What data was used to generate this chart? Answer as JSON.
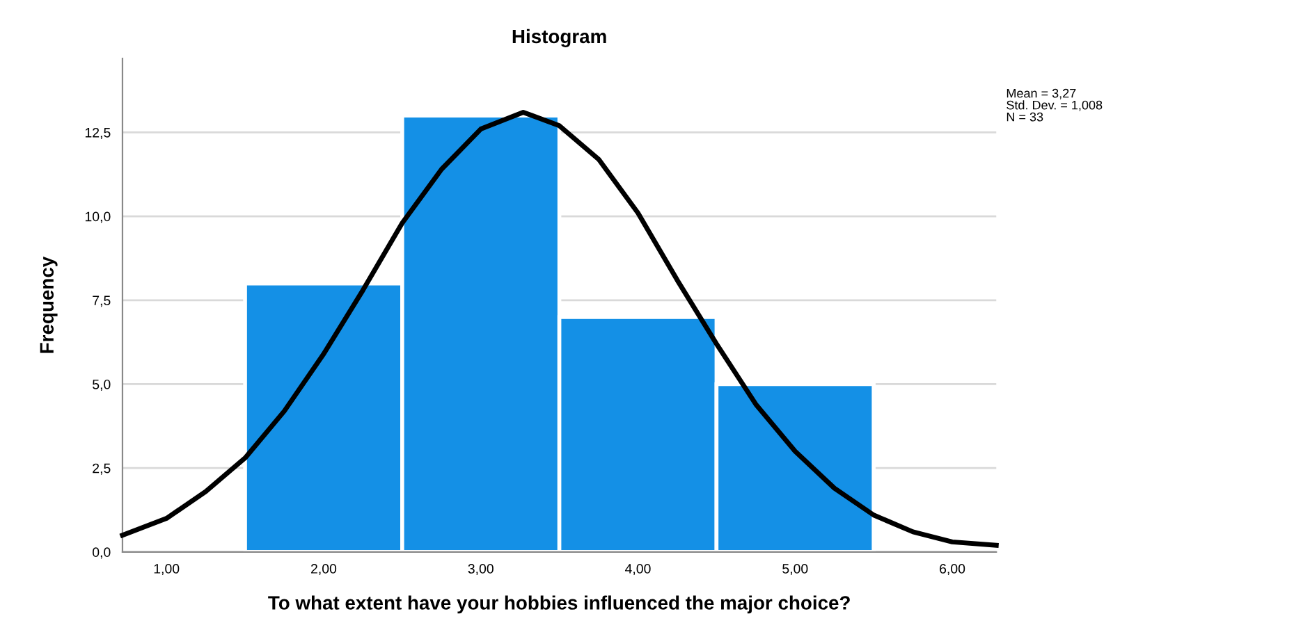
{
  "chart_data": {
    "type": "histogram",
    "title": "Histogram",
    "xlabel": "To what extent have your hobbies influenced the major choice?",
    "ylabel": "Frequency",
    "bins": [
      1.5,
      2.5,
      3.5,
      4.5,
      5.5
    ],
    "series": [
      {
        "color": "#1490e6",
        "values": [
          8,
          13,
          7,
          5
        ]
      },
      {
        "type": "line",
        "color": "#000000",
        "x": [
          0.72,
          1.0,
          1.25,
          1.5,
          1.75,
          2.0,
          2.25,
          2.5,
          2.75,
          3.0,
          3.27,
          3.5,
          3.75,
          4.0,
          4.25,
          4.5,
          4.75,
          5.0,
          5.25,
          5.5,
          5.75,
          6.0,
          6.28
        ],
        "values": [
          0.5,
          1.0,
          1.8,
          2.8,
          4.2,
          5.9,
          7.8,
          9.8,
          11.4,
          12.6,
          13.1,
          12.7,
          11.7,
          10.1,
          8.1,
          6.2,
          4.4,
          3.0,
          1.9,
          1.1,
          0.6,
          0.3,
          0.2
        ]
      }
    ],
    "xlim": [
      0.72,
      6.28
    ],
    "ylim": [
      0,
      14.7
    ],
    "xticks": [
      {
        "value": 1,
        "label": "1,00"
      },
      {
        "value": 2,
        "label": "2,00"
      },
      {
        "value": 3,
        "label": "3,00"
      },
      {
        "value": 4,
        "label": "4,00"
      },
      {
        "value": 5,
        "label": "5,00"
      },
      {
        "value": 6,
        "label": "6,00"
      }
    ],
    "yticks": [
      {
        "value": 0,
        "label": "0,0"
      },
      {
        "value": 2.5,
        "label": "2,5"
      },
      {
        "value": 5,
        "label": "5,0"
      },
      {
        "value": 7.5,
        "label": "7,5"
      },
      {
        "value": 10,
        "label": "10,0"
      },
      {
        "value": 12.5,
        "label": "12,5"
      }
    ],
    "grid": "y",
    "annotations": [
      "Mean = 3,27",
      "Std. Dev. = 1,008",
      "N = 33"
    ]
  }
}
